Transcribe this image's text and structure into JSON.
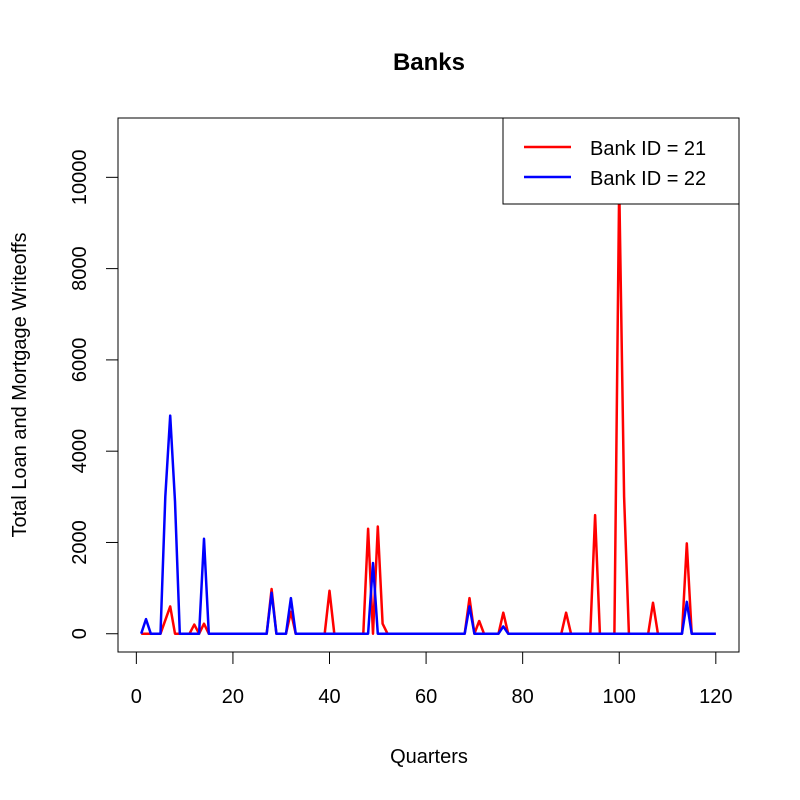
{
  "chart_data": {
    "type": "line",
    "title": "Banks",
    "xlabel": "Quarters",
    "ylabel": "Total Loan and Mortgage Writeoffs",
    "xlim": [
      -3.8,
      124.8
    ],
    "ylim": [
      -400,
      11300
    ],
    "xticks": [
      0,
      20,
      40,
      60,
      80,
      100,
      120
    ],
    "yticks": [
      0,
      2000,
      4000,
      6000,
      8000,
      10000
    ],
    "grid": false,
    "legend_position": "top-right",
    "series": [
      {
        "name": "Bank ID = 21",
        "color": "#ff0000",
        "points": [
          [
            1,
            0
          ],
          [
            5,
            0
          ],
          [
            7,
            600
          ],
          [
            8,
            0
          ],
          [
            11,
            0
          ],
          [
            12,
            200
          ],
          [
            13,
            0
          ],
          [
            14,
            220
          ],
          [
            15,
            0
          ],
          [
            27,
            0
          ],
          [
            28,
            980
          ],
          [
            29,
            0
          ],
          [
            31,
            0
          ],
          [
            32,
            480
          ],
          [
            33,
            0
          ],
          [
            39,
            0
          ],
          [
            40,
            940
          ],
          [
            41,
            0
          ],
          [
            47,
            0
          ],
          [
            48,
            2300
          ],
          [
            49,
            0
          ],
          [
            50,
            2350
          ],
          [
            51,
            220
          ],
          [
            52,
            0
          ],
          [
            68,
            0
          ],
          [
            69,
            780
          ],
          [
            70,
            0
          ],
          [
            71,
            280
          ],
          [
            72,
            0
          ],
          [
            75,
            0
          ],
          [
            76,
            460
          ],
          [
            77,
            0
          ],
          [
            88,
            0
          ],
          [
            89,
            460
          ],
          [
            90,
            0
          ],
          [
            94,
            0
          ],
          [
            95,
            2600
          ],
          [
            96,
            0
          ],
          [
            99,
            0
          ],
          [
            100,
            9850
          ],
          [
            101,
            3000
          ],
          [
            102,
            0
          ],
          [
            106,
            0
          ],
          [
            107,
            680
          ],
          [
            108,
            0
          ],
          [
            113,
            0
          ],
          [
            114,
            1980
          ],
          [
            115,
            0
          ],
          [
            120,
            0
          ]
        ]
      },
      {
        "name": "Bank ID = 22",
        "color": "#0000ff",
        "points": [
          [
            1,
            0
          ],
          [
            2,
            320
          ],
          [
            3,
            0
          ],
          [
            5,
            0
          ],
          [
            6,
            3000
          ],
          [
            7,
            4780
          ],
          [
            8,
            2900
          ],
          [
            9,
            0
          ],
          [
            13,
            0
          ],
          [
            14,
            2080
          ],
          [
            15,
            0
          ],
          [
            27,
            0
          ],
          [
            28,
            900
          ],
          [
            29,
            0
          ],
          [
            31,
            0
          ],
          [
            32,
            780
          ],
          [
            33,
            0
          ],
          [
            48,
            0
          ],
          [
            49,
            1550
          ],
          [
            50,
            0
          ],
          [
            68,
            0
          ],
          [
            69,
            600
          ],
          [
            70,
            0
          ],
          [
            75,
            0
          ],
          [
            76,
            160
          ],
          [
            77,
            0
          ],
          [
            113,
            0
          ],
          [
            114,
            700
          ],
          [
            115,
            0
          ],
          [
            120,
            0
          ]
        ]
      }
    ]
  }
}
